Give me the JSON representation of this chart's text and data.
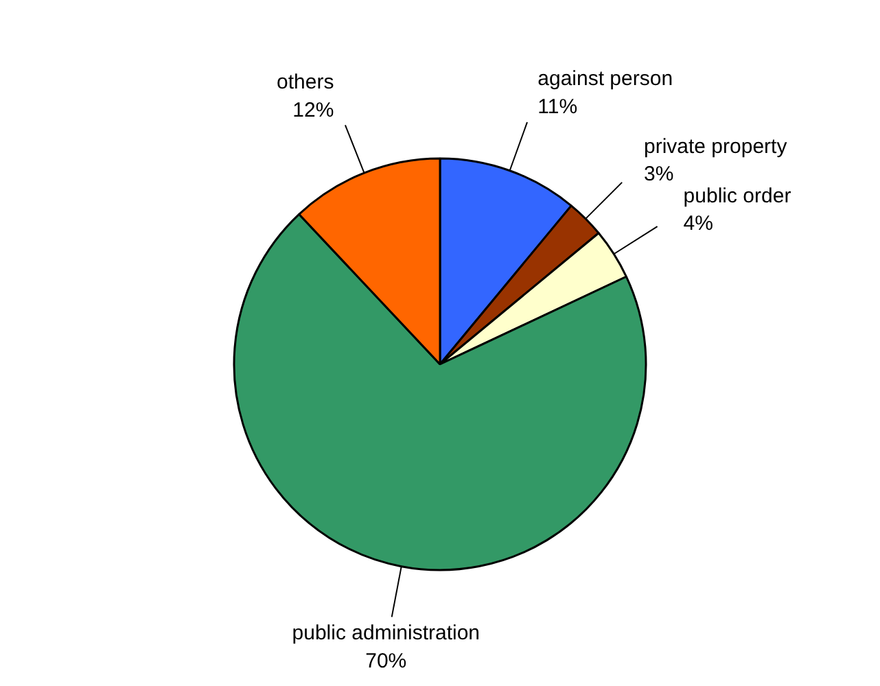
{
  "chart_data": {
    "type": "pie",
    "categories": [
      "against person",
      "private property",
      "public order",
      "public administration",
      "others"
    ],
    "values": [
      11,
      3,
      4,
      70,
      12
    ],
    "value_labels": [
      "11%",
      "3%",
      "4%",
      "70%",
      "12%"
    ],
    "colors": [
      "#3366ff",
      "#993300",
      "#ffffcc",
      "#339966",
      "#ff6600"
    ]
  }
}
